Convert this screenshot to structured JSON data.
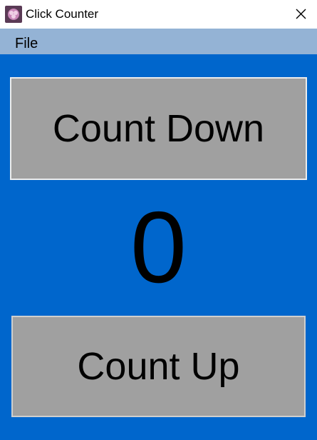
{
  "window": {
    "title": "Click Counter",
    "app_icon": "app-logo-icon",
    "close_icon": "close-icon"
  },
  "menu": {
    "items": [
      {
        "label": "File"
      }
    ]
  },
  "buttons": {
    "count_down": "Count Down",
    "count_up": "Count Up"
  },
  "counter": {
    "value": "0"
  },
  "colors": {
    "background": "#0066cc",
    "menubar": "#94b3d5",
    "button": "#a0a0a0",
    "titlebar": "#ffffff"
  }
}
